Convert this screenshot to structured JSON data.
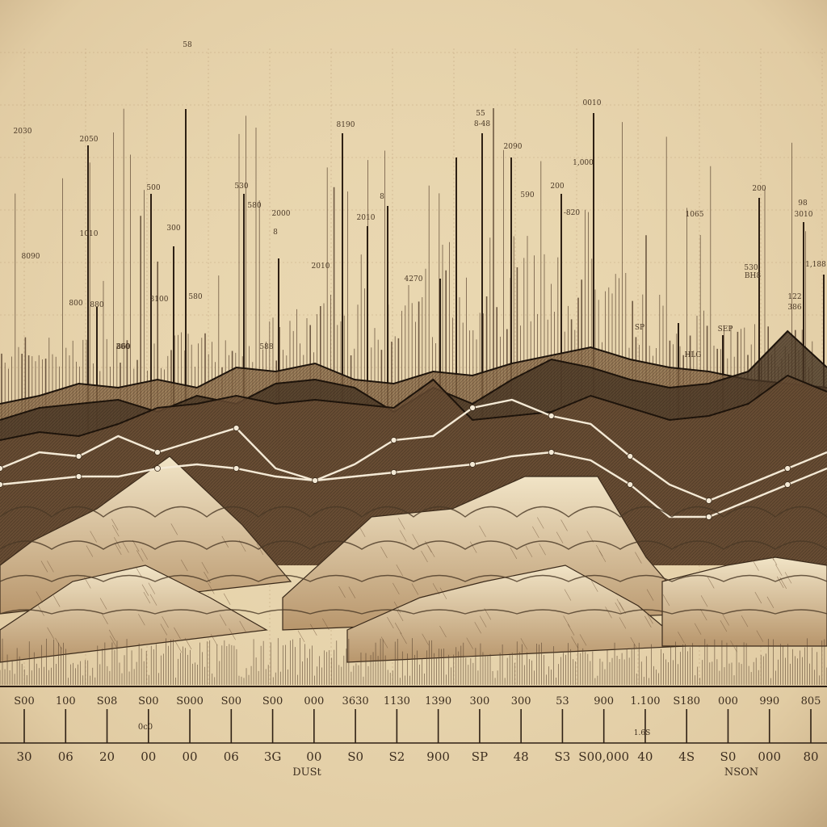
{
  "chart_data": {
    "type": "line",
    "title": "",
    "xlabel": "",
    "ylabel": "",
    "grid": true,
    "colors": {
      "paper": "#e9d7b0",
      "ink": "#3b2a1a",
      "band_dark": "#4a3826",
      "band_mid": "#8a6a48",
      "band_light": "#b89873",
      "mountain": "#e8d9b8",
      "line_white": "#f4ead6"
    },
    "spike_labels": [
      "58",
      "2030",
      "2050",
      "1010",
      "8090",
      "800",
      "880",
      "860",
      "300",
      "3100",
      "500",
      "580",
      "530",
      "2000",
      "580",
      "2010",
      "8190",
      "2010",
      "8",
      "4270",
      "55",
      "8-48",
      "2090",
      "0010",
      "1,000",
      "590",
      "200",
      "-820",
      "1065",
      "200",
      "98",
      "3010",
      "1,188",
      "530",
      "BH8",
      "122",
      "386",
      "SP",
      "HLG",
      "SEP",
      "300",
      "588",
      "8"
    ],
    "series_top": [
      {
        "values": [
          500,
          490,
          475,
          480,
          470,
          480,
          455,
          460,
          450,
          470,
          475,
          460,
          465,
          450,
          440,
          430,
          445,
          455,
          460,
          470,
          475,
          480
        ]
      },
      {
        "values": [
          520,
          505,
          500,
          495,
          510,
          490,
          500,
          475,
          470,
          480,
          510,
          480,
          500,
          470,
          445,
          455,
          470,
          480,
          475,
          460,
          410,
          455
        ]
      },
      {
        "values": [
          545,
          535,
          540,
          525,
          505,
          500,
          490,
          500,
          495,
          500,
          505,
          470,
          520,
          515,
          510,
          490,
          505,
          520,
          515,
          500,
          465,
          485
        ]
      }
    ],
    "series_bottom": [
      {
        "values": [
          580,
          560,
          565,
          540,
          560,
          545,
          530,
          580,
          595,
          575,
          545,
          540,
          505,
          495,
          515,
          525,
          565,
          600,
          620,
          600,
          580,
          560
        ]
      },
      {
        "values": [
          600,
          595,
          590,
          590,
          580,
          575,
          580,
          590,
          595,
          590,
          585,
          580,
          575,
          565,
          560,
          570,
          600,
          640,
          640,
          620,
          600,
          580
        ]
      }
    ],
    "x_tick_labels_row1": [
      "S00",
      "100",
      "S08",
      "S00",
      "S000",
      "S00",
      "S00",
      "000",
      "3630",
      "1130",
      "1390",
      "300",
      "300",
      "53",
      "900",
      "1.100",
      "S180",
      "000",
      "990",
      "805"
    ],
    "x_tick_labels_row2": [
      "30",
      "06",
      "20",
      "00",
      "00",
      "06",
      "3G",
      "00",
      "S0",
      "S2",
      "900",
      "SP",
      "48",
      "S3",
      "S00,000",
      "40",
      "4S",
      "S0",
      "000",
      "80"
    ],
    "axis_annotations": [
      "0c0",
      "1.6S",
      "DUSt",
      "NSON"
    ]
  }
}
